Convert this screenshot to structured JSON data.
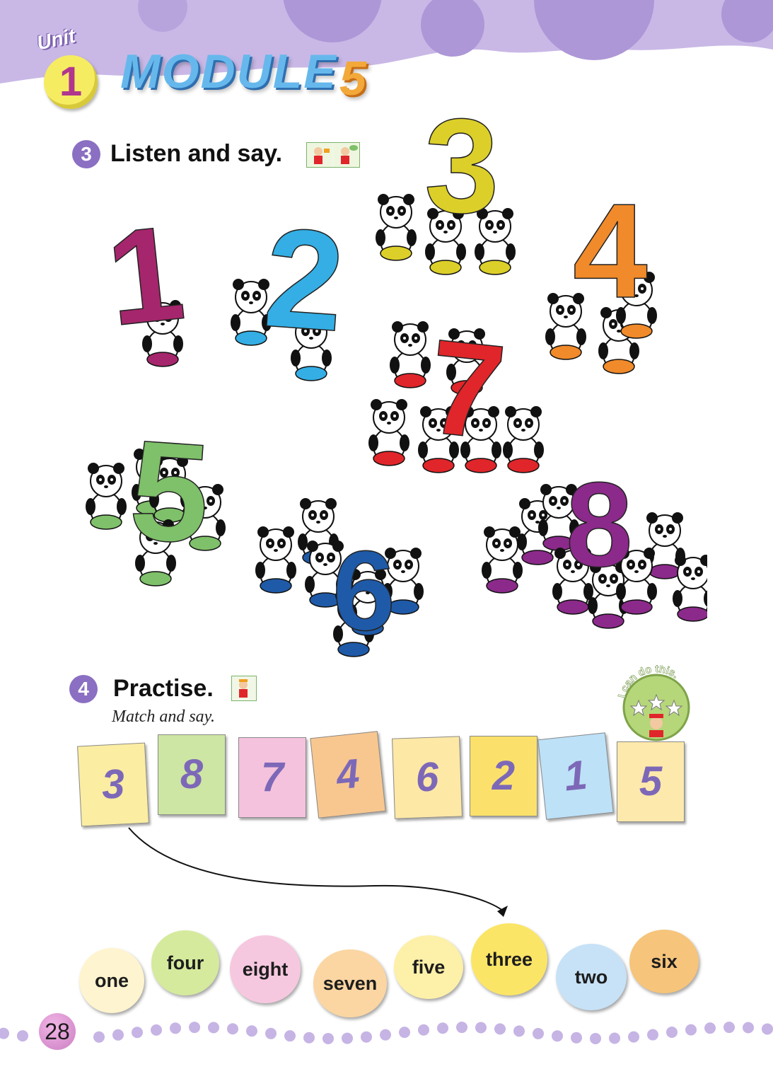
{
  "header": {
    "unit_word": "Unit",
    "unit_number": "1",
    "module_title": "MODULE",
    "module_number": "5"
  },
  "section3": {
    "number": "3",
    "title": "Listen and say.",
    "icon": "listen-and-speak-icon"
  },
  "illustration": {
    "numerals": [
      "1",
      "2",
      "3",
      "4",
      "5",
      "6",
      "7",
      "8"
    ],
    "numeral_colors": [
      "#a5266c",
      "#34aee4",
      "#dccf2a",
      "#f08a2a",
      "#7fc06a",
      "#1f5aa8",
      "#e0262a",
      "#8b2a8a"
    ]
  },
  "section4": {
    "number": "4",
    "title": "Practise.",
    "icon": "practise-icon",
    "instruction": "Match and say.",
    "badge_text": "I can do this."
  },
  "number_cards": [
    {
      "label": "3",
      "color": "#fbeda2"
    },
    {
      "label": "8",
      "color": "#cde6a3"
    },
    {
      "label": "7",
      "color": "#f5c2dd"
    },
    {
      "label": "4",
      "color": "#f8c78f"
    },
    {
      "label": "6",
      "color": "#fde8a6"
    },
    {
      "label": "2",
      "color": "#fbe16b"
    },
    {
      "label": "1",
      "color": "#bde1f7"
    },
    {
      "label": "5",
      "color": "#fde9ab"
    }
  ],
  "word_circles": [
    {
      "label": "one",
      "color": "#fef4cf"
    },
    {
      "label": "four",
      "color": "#d5ea9d"
    },
    {
      "label": "eight",
      "color": "#f6c8e0"
    },
    {
      "label": "seven",
      "color": "#fbd6a2"
    },
    {
      "label": "five",
      "color": "#fdf0a8"
    },
    {
      "label": "three",
      "color": "#fbe566"
    },
    {
      "label": "two",
      "color": "#c7e2f7"
    },
    {
      "label": "six",
      "color": "#f6c47a"
    }
  ],
  "example_match": {
    "from": "3",
    "to": "three"
  },
  "footer": {
    "page_number": "28"
  }
}
